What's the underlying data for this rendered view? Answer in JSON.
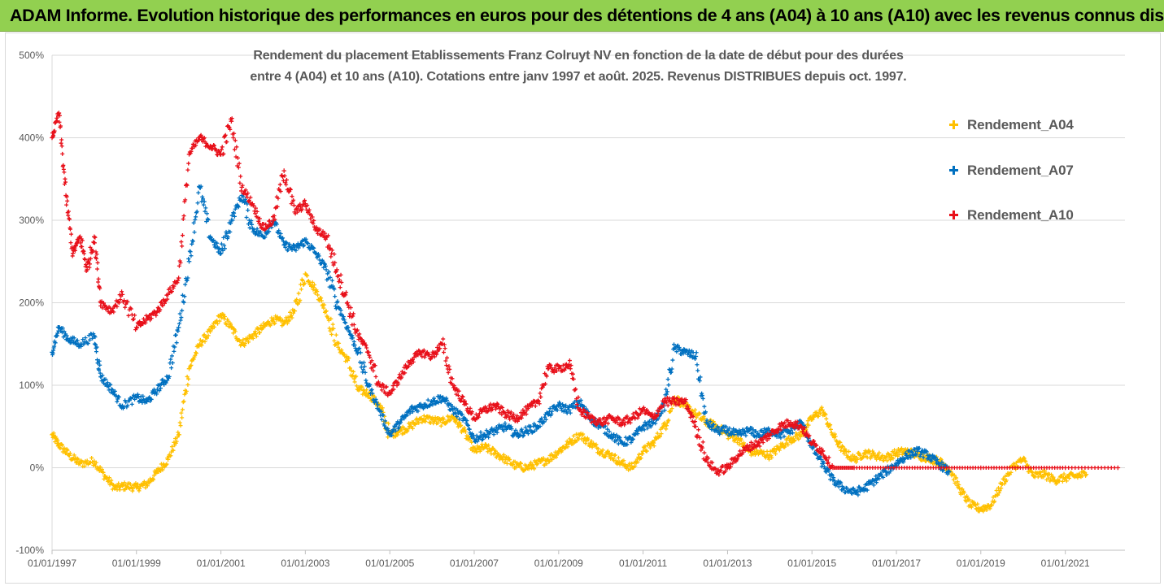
{
  "banner": {
    "title": "ADAM Informe. Evolution historique des performances en euros pour des détentions de 4 ans (A04) à 10 ans (A10) avec les revenus connus distribués"
  },
  "colors": {
    "banner_bg": "#92d050",
    "a04": "#ffc000",
    "a07": "#0070c0",
    "a10": "#e8101a",
    "grid": "#d9d9d9",
    "axis_text": "#595959"
  },
  "chart_data": {
    "type": "scatter",
    "title_line1": "Rendement du placement Etablissements Franz Colruyt NV en fonction de la date de début pour des durées",
    "title_line2": "entre 4 (A04) et 10 ans (A10). Cotations entre janv 1997 et août. 2025. Revenus DISTRIBUES depuis oct. 1997.",
    "x_axis": {
      "type": "date",
      "range": [
        "1997-01-01",
        "2022-06-01"
      ],
      "tick_labels": [
        "01/01/1997",
        "01/01/1999",
        "01/01/2001",
        "01/01/2003",
        "01/01/2005",
        "01/01/2007",
        "01/01/2009",
        "01/01/2011",
        "01/01/2013",
        "01/01/2015",
        "01/01/2017",
        "01/01/2019",
        "01/01/2021"
      ]
    },
    "y_axis": {
      "range": [
        -100,
        500
      ],
      "unit": "%",
      "tick_values": [
        -100,
        0,
        100,
        200,
        300,
        400,
        500
      ],
      "tick_labels": [
        "-100%",
        "0%",
        "100%",
        "200%",
        "300%",
        "400%",
        "500%"
      ],
      "grid": true
    },
    "legend_position": "right",
    "series": [
      {
        "name": "Rendement_A04",
        "color": "#ffc000",
        "marker": "+",
        "points": [
          [
            "1997-01-01",
            40
          ],
          [
            "1997-03-01",
            28
          ],
          [
            "1997-06-01",
            15
          ],
          [
            "1997-09-01",
            5
          ],
          [
            "1998-01-01",
            8
          ],
          [
            "1998-04-01",
            -10
          ],
          [
            "1998-07-01",
            -25
          ],
          [
            "1998-10-01",
            -22
          ],
          [
            "1999-01-01",
            -24
          ],
          [
            "1999-04-01",
            -20
          ],
          [
            "1999-07-01",
            -5
          ],
          [
            "1999-10-01",
            10
          ],
          [
            "2000-01-01",
            40
          ],
          [
            "2000-04-01",
            120
          ],
          [
            "2000-07-01",
            150
          ],
          [
            "2000-10-01",
            165
          ],
          [
            "2001-01-01",
            185
          ],
          [
            "2001-04-01",
            170
          ],
          [
            "2001-07-01",
            150
          ],
          [
            "2001-10-01",
            160
          ],
          [
            "2002-01-01",
            170
          ],
          [
            "2002-04-01",
            180
          ],
          [
            "2002-07-01",
            175
          ],
          [
            "2002-10-01",
            190
          ],
          [
            "2003-01-01",
            235
          ],
          [
            "2003-04-01",
            215
          ],
          [
            "2003-07-01",
            190
          ],
          [
            "2003-10-01",
            150
          ],
          [
            "2004-01-01",
            130
          ],
          [
            "2004-04-01",
            95
          ],
          [
            "2004-07-01",
            90
          ],
          [
            "2004-10-01",
            75
          ],
          [
            "2005-01-01",
            40
          ],
          [
            "2005-04-01",
            45
          ],
          [
            "2005-07-01",
            50
          ],
          [
            "2005-10-01",
            60
          ],
          [
            "2006-01-01",
            58
          ],
          [
            "2006-04-01",
            55
          ],
          [
            "2006-07-01",
            62
          ],
          [
            "2006-10-01",
            45
          ],
          [
            "2007-01-01",
            20
          ],
          [
            "2007-04-01",
            25
          ],
          [
            "2007-07-01",
            18
          ],
          [
            "2007-10-01",
            10
          ],
          [
            "2008-01-01",
            2
          ],
          [
            "2008-04-01",
            0
          ],
          [
            "2008-07-01",
            5
          ],
          [
            "2008-10-01",
            10
          ],
          [
            "2009-01-01",
            20
          ],
          [
            "2009-04-01",
            30
          ],
          [
            "2009-07-01",
            40
          ],
          [
            "2009-10-01",
            30
          ],
          [
            "2010-01-01",
            20
          ],
          [
            "2010-04-01",
            15
          ],
          [
            "2010-07-01",
            5
          ],
          [
            "2010-10-01",
            0
          ],
          [
            "2011-01-01",
            20
          ],
          [
            "2011-04-01",
            30
          ],
          [
            "2011-07-01",
            50
          ],
          [
            "2011-10-01",
            85
          ],
          [
            "2012-01-01",
            75
          ],
          [
            "2012-04-01",
            65
          ],
          [
            "2012-07-01",
            55
          ],
          [
            "2012-10-01",
            50
          ],
          [
            "2013-01-01",
            40
          ],
          [
            "2013-04-01",
            35
          ],
          [
            "2013-07-01",
            20
          ],
          [
            "2013-10-01",
            18
          ],
          [
            "2014-01-01",
            15
          ],
          [
            "2014-04-01",
            25
          ],
          [
            "2014-07-01",
            35
          ],
          [
            "2014-10-01",
            40
          ],
          [
            "2015-01-01",
            60
          ],
          [
            "2015-04-01",
            70
          ],
          [
            "2015-07-01",
            40
          ],
          [
            "2015-10-01",
            20
          ],
          [
            "2016-01-01",
            10
          ],
          [
            "2016-04-01",
            18
          ],
          [
            "2016-07-01",
            15
          ],
          [
            "2016-10-01",
            12
          ],
          [
            "2017-01-01",
            18
          ],
          [
            "2017-04-01",
            20
          ],
          [
            "2017-07-01",
            15
          ],
          [
            "2017-10-01",
            12
          ],
          [
            "2018-01-01",
            8
          ],
          [
            "2018-04-01",
            0
          ],
          [
            "2018-07-01",
            -25
          ],
          [
            "2018-10-01",
            -45
          ],
          [
            "2019-01-01",
            -50
          ],
          [
            "2019-04-01",
            -45
          ],
          [
            "2019-07-01",
            -20
          ],
          [
            "2019-10-01",
            0
          ],
          [
            "2020-01-01",
            10
          ],
          [
            "2020-04-01",
            -10
          ],
          [
            "2020-07-01",
            -8
          ],
          [
            "2020-10-01",
            -15
          ],
          [
            "2021-01-01",
            -12
          ],
          [
            "2021-04-01",
            -10
          ],
          [
            "2021-07-01",
            -8
          ]
        ]
      },
      {
        "name": "Rendement_A07",
        "color": "#0070c0",
        "marker": "+",
        "points": [
          [
            "1997-01-01",
            140
          ],
          [
            "1997-03-01",
            170
          ],
          [
            "1997-06-01",
            155
          ],
          [
            "1997-09-01",
            150
          ],
          [
            "1998-01-01",
            160
          ],
          [
            "1998-03-01",
            110
          ],
          [
            "1998-06-01",
            95
          ],
          [
            "1998-09-01",
            75
          ],
          [
            "1999-01-01",
            85
          ],
          [
            "1999-04-01",
            80
          ],
          [
            "1999-07-01",
            95
          ],
          [
            "1999-10-01",
            110
          ],
          [
            "2000-01-01",
            170
          ],
          [
            "2000-04-01",
            250
          ],
          [
            "2000-07-01",
            340
          ],
          [
            "2000-10-01",
            280
          ],
          [
            "2001-01-01",
            260
          ],
          [
            "2001-04-01",
            300
          ],
          [
            "2001-07-01",
            330
          ],
          [
            "2001-10-01",
            290
          ],
          [
            "2002-01-01",
            280
          ],
          [
            "2002-04-01",
            300
          ],
          [
            "2002-07-01",
            270
          ],
          [
            "2002-10-01",
            265
          ],
          [
            "2003-01-01",
            275
          ],
          [
            "2003-04-01",
            260
          ],
          [
            "2003-07-01",
            240
          ],
          [
            "2003-10-01",
            200
          ],
          [
            "2004-01-01",
            170
          ],
          [
            "2004-04-01",
            140
          ],
          [
            "2004-07-01",
            100
          ],
          [
            "2004-10-01",
            70
          ],
          [
            "2005-01-01",
            40
          ],
          [
            "2005-04-01",
            55
          ],
          [
            "2005-07-01",
            70
          ],
          [
            "2005-10-01",
            75
          ],
          [
            "2006-01-01",
            80
          ],
          [
            "2006-04-01",
            85
          ],
          [
            "2006-07-01",
            70
          ],
          [
            "2006-10-01",
            60
          ],
          [
            "2007-01-01",
            35
          ],
          [
            "2007-04-01",
            40
          ],
          [
            "2007-07-01",
            45
          ],
          [
            "2007-10-01",
            50
          ],
          [
            "2008-01-01",
            40
          ],
          [
            "2008-04-01",
            45
          ],
          [
            "2008-07-01",
            50
          ],
          [
            "2008-10-01",
            65
          ],
          [
            "2009-01-01",
            75
          ],
          [
            "2009-04-01",
            70
          ],
          [
            "2009-07-01",
            80
          ],
          [
            "2009-10-01",
            60
          ],
          [
            "2010-01-01",
            50
          ],
          [
            "2010-04-01",
            40
          ],
          [
            "2010-07-01",
            30
          ],
          [
            "2010-10-01",
            35
          ],
          [
            "2011-01-01",
            50
          ],
          [
            "2011-04-01",
            55
          ],
          [
            "2011-07-01",
            75
          ],
          [
            "2011-10-01",
            145
          ],
          [
            "2012-01-01",
            140
          ],
          [
            "2012-04-01",
            135
          ],
          [
            "2012-07-01",
            55
          ],
          [
            "2012-10-01",
            45
          ],
          [
            "2013-01-01",
            45
          ],
          [
            "2013-04-01",
            40
          ],
          [
            "2013-07-01",
            45
          ],
          [
            "2013-10-01",
            40
          ],
          [
            "2014-01-01",
            45
          ],
          [
            "2014-04-01",
            40
          ],
          [
            "2014-07-01",
            45
          ],
          [
            "2014-10-01",
            55
          ],
          [
            "2015-01-01",
            25
          ],
          [
            "2015-04-01",
            5
          ],
          [
            "2015-07-01",
            -15
          ],
          [
            "2015-10-01",
            -25
          ],
          [
            "2016-01-01",
            -30
          ],
          [
            "2016-04-01",
            -25
          ],
          [
            "2016-07-01",
            -15
          ],
          [
            "2016-10-01",
            -5
          ],
          [
            "2017-01-01",
            5
          ],
          [
            "2017-04-01",
            15
          ],
          [
            "2017-07-01",
            20
          ],
          [
            "2017-10-01",
            15
          ],
          [
            "2018-01-01",
            5
          ],
          [
            "2018-04-01",
            -5
          ]
        ]
      },
      {
        "name": "Rendement_A10",
        "color": "#e8101a",
        "marker": "+",
        "points": [
          [
            "1997-01-01",
            400
          ],
          [
            "1997-03-01",
            430
          ],
          [
            "1997-05-01",
            330
          ],
          [
            "1997-07-01",
            260
          ],
          [
            "1997-09-01",
            280
          ],
          [
            "1997-11-01",
            240
          ],
          [
            "1998-01-01",
            280
          ],
          [
            "1998-03-01",
            200
          ],
          [
            "1998-06-01",
            190
          ],
          [
            "1998-09-01",
            210
          ],
          [
            "1999-01-01",
            170
          ],
          [
            "1999-04-01",
            180
          ],
          [
            "1999-07-01",
            190
          ],
          [
            "1999-10-01",
            210
          ],
          [
            "2000-01-01",
            230
          ],
          [
            "2000-04-01",
            380
          ],
          [
            "2000-07-01",
            400
          ],
          [
            "2000-10-01",
            390
          ],
          [
            "2001-01-01",
            380
          ],
          [
            "2001-04-01",
            420
          ],
          [
            "2001-07-01",
            340
          ],
          [
            "2001-10-01",
            320
          ],
          [
            "2002-01-01",
            290
          ],
          [
            "2002-04-01",
            300
          ],
          [
            "2002-07-01",
            360
          ],
          [
            "2002-10-01",
            310
          ],
          [
            "2003-01-01",
            320
          ],
          [
            "2003-04-01",
            290
          ],
          [
            "2003-07-01",
            280
          ],
          [
            "2003-10-01",
            240
          ],
          [
            "2004-01-01",
            200
          ],
          [
            "2004-04-01",
            160
          ],
          [
            "2004-07-01",
            140
          ],
          [
            "2004-10-01",
            100
          ],
          [
            "2005-01-01",
            90
          ],
          [
            "2005-04-01",
            110
          ],
          [
            "2005-07-01",
            130
          ],
          [
            "2005-10-01",
            140
          ],
          [
            "2006-01-01",
            135
          ],
          [
            "2006-04-01",
            150
          ],
          [
            "2006-07-01",
            100
          ],
          [
            "2006-10-01",
            80
          ],
          [
            "2007-01-01",
            60
          ],
          [
            "2007-04-01",
            70
          ],
          [
            "2007-07-01",
            75
          ],
          [
            "2007-10-01",
            65
          ],
          [
            "2008-01-01",
            60
          ],
          [
            "2008-04-01",
            70
          ],
          [
            "2008-07-01",
            80
          ],
          [
            "2008-10-01",
            120
          ],
          [
            "2009-01-01",
            120
          ],
          [
            "2009-04-01",
            125
          ],
          [
            "2009-07-01",
            70
          ],
          [
            "2009-10-01",
            60
          ],
          [
            "2010-01-01",
            55
          ],
          [
            "2010-04-01",
            60
          ],
          [
            "2010-07-01",
            55
          ],
          [
            "2010-10-01",
            60
          ],
          [
            "2011-01-01",
            70
          ],
          [
            "2011-04-01",
            60
          ],
          [
            "2011-07-01",
            80
          ],
          [
            "2011-10-01",
            80
          ],
          [
            "2012-01-01",
            80
          ],
          [
            "2012-04-01",
            50
          ],
          [
            "2012-07-01",
            10
          ],
          [
            "2012-10-01",
            -5
          ],
          [
            "2013-01-01",
            0
          ],
          [
            "2013-04-01",
            15
          ],
          [
            "2013-07-01",
            25
          ],
          [
            "2013-10-01",
            30
          ],
          [
            "2014-01-01",
            40
          ],
          [
            "2014-04-01",
            50
          ],
          [
            "2014-07-01",
            55
          ],
          [
            "2014-10-01",
            50
          ],
          [
            "2015-01-01",
            30
          ],
          [
            "2015-04-01",
            20
          ],
          [
            "2015-07-01",
            0
          ],
          [
            "2016-01-01",
            0
          ],
          [
            "2017-01-01",
            0
          ],
          [
            "2018-01-01",
            0
          ],
          [
            "2019-01-01",
            0
          ],
          [
            "2020-01-01",
            0
          ],
          [
            "2021-01-01",
            0
          ],
          [
            "2022-04-01",
            0
          ]
        ]
      }
    ]
  }
}
